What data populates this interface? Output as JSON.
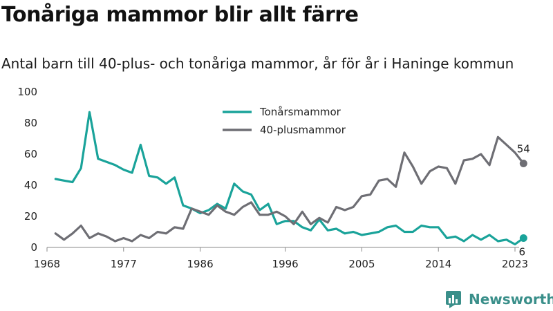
{
  "title": "Tonåriga mammor blir allt färre",
  "subtitle": "Antal barn till 40-plus- och tonåriga mammor, år för år i Haninge kommun",
  "brand": "Newsworthy",
  "colors": {
    "teen": "#1aa39a",
    "forty": "#6e6e74",
    "axis": "#888888",
    "grid": "#e6e6e6"
  },
  "chart_data": {
    "type": "line",
    "xlabel": "",
    "ylabel": "",
    "ylim": [
      0,
      100
    ],
    "xlim": [
      1968,
      2023
    ],
    "y_ticks": [
      0,
      20,
      40,
      60,
      80,
      100
    ],
    "x_ticks": [
      1968,
      1977,
      1986,
      1996,
      2005,
      2014,
      2023
    ],
    "legend": "top-center",
    "grid": false,
    "x": [
      1969,
      1970,
      1971,
      1972,
      1973,
      1974,
      1975,
      1976,
      1977,
      1978,
      1979,
      1980,
      1981,
      1982,
      1983,
      1984,
      1985,
      1986,
      1987,
      1988,
      1989,
      1990,
      1991,
      1992,
      1993,
      1994,
      1995,
      1996,
      1997,
      1998,
      1999,
      2000,
      2001,
      2002,
      2003,
      2004,
      2005,
      2006,
      2007,
      2008,
      2009,
      2010,
      2011,
      2012,
      2013,
      2014,
      2015,
      2016,
      2017,
      2018,
      2019,
      2020,
      2021,
      2022,
      2023
    ],
    "series": [
      {
        "name": "Tonårsmammor",
        "color": "#1aa39a",
        "end_label": "6",
        "values": [
          44,
          43,
          42,
          51,
          87,
          57,
          55,
          53,
          50,
          48,
          66,
          46,
          45,
          41,
          45,
          27,
          25,
          22,
          24,
          28,
          25,
          41,
          36,
          34,
          24,
          28,
          15,
          17,
          17,
          13,
          11,
          18,
          11,
          12,
          9,
          10,
          8,
          9,
          10,
          13,
          14,
          10,
          10,
          14,
          13,
          13,
          6,
          7,
          4,
          8,
          5,
          8,
          4,
          5,
          2
        ]
      },
      {
        "name": "40-plusmammor",
        "color": "#6e6e74",
        "end_label": "54",
        "values": [
          9,
          5,
          9,
          14,
          6,
          9,
          7,
          4,
          6,
          4,
          8,
          6,
          10,
          9,
          13,
          12,
          25,
          23,
          21,
          27,
          23,
          21,
          26,
          29,
          21,
          21,
          23,
          20,
          15,
          23,
          15,
          19,
          16,
          26,
          24,
          26,
          33,
          34,
          43,
          44,
          39,
          61,
          52,
          41,
          49,
          52,
          51,
          41,
          56,
          57,
          60,
          53,
          71,
          66,
          61
        ]
      }
    ],
    "last_point": {
      "x": 2024,
      "values": [
        6,
        54
      ]
    }
  }
}
